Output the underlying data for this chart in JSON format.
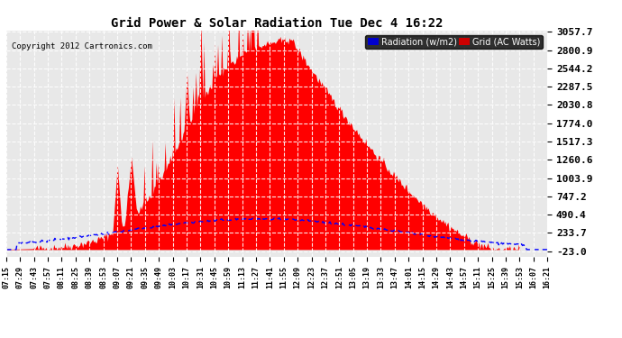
{
  "title": "Grid Power & Solar Radiation Tue Dec 4 16:22",
  "copyright": "Copyright 2012 Cartronics.com",
  "yticks": [
    3057.7,
    2800.9,
    2544.2,
    2287.5,
    2030.8,
    1774.0,
    1517.3,
    1260.6,
    1003.9,
    747.2,
    490.4,
    233.7,
    -23.0
  ],
  "ymin": -23.0,
  "ymax": 3057.7,
  "bg_color": "#ffffff",
  "plot_bg_color": "#e8e8e8",
  "grid_color": "#aaaaaa",
  "red_fill_color": "#ff0000",
  "blue_line_color": "#0000ff",
  "legend_radiation_label": "Radiation (w/m2)",
  "legend_grid_label": "Grid (AC Watts)",
  "legend_radiation_bg": "#0000cc",
  "legend_grid_bg": "#cc0000",
  "xtick_labels": [
    "07:15",
    "07:29",
    "07:43",
    "07:57",
    "08:11",
    "08:25",
    "08:39",
    "08:53",
    "09:07",
    "09:21",
    "09:35",
    "09:49",
    "10:03",
    "10:17",
    "10:31",
    "10:45",
    "10:59",
    "11:13",
    "11:27",
    "11:41",
    "11:55",
    "12:09",
    "12:23",
    "12:37",
    "12:51",
    "13:05",
    "13:19",
    "13:33",
    "13:47",
    "14:01",
    "14:15",
    "14:29",
    "14:43",
    "14:57",
    "15:11",
    "15:25",
    "15:39",
    "15:53",
    "16:07",
    "16:21"
  ]
}
